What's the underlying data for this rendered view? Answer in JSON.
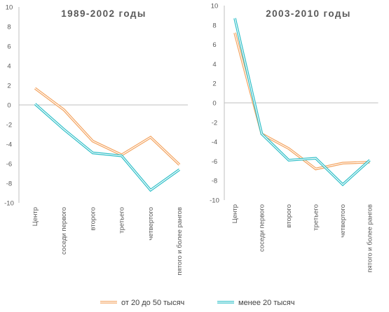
{
  "chart_data": [
    {
      "type": "line",
      "title": "1989-2002 годы",
      "categories": [
        "Центр",
        "соседи первого",
        "второго",
        "третьего",
        "четвертого",
        "пятого и более рангов"
      ],
      "ylim": [
        -10,
        10
      ],
      "yticks": [
        10,
        8,
        6,
        4,
        2,
        0,
        -2,
        -4,
        -6,
        -8,
        -10
      ],
      "grid": false,
      "series": [
        {
          "name": "от 20 до 50 тысяч",
          "color": "#f4a460",
          "values": [
            1.7,
            -0.5,
            -3.7,
            -5.1,
            -3.3,
            -6.1
          ]
        },
        {
          "name": "менее 20 тысяч",
          "color": "#2ebfc8",
          "values": [
            0.1,
            -2.5,
            -4.9,
            -5.2,
            -8.7,
            -6.6
          ]
        }
      ]
    },
    {
      "type": "line",
      "title": "2003-2010 годы",
      "categories": [
        "Центр",
        "соседи первого",
        "второго",
        "третьего",
        "четвертого",
        "пятого и более рангов"
      ],
      "ylim": [
        -10,
        10
      ],
      "yticks": [
        10,
        8,
        6,
        4,
        2,
        0,
        -2,
        -4,
        -6,
        -8,
        -10
      ],
      "grid": false,
      "series": [
        {
          "name": "от 20 до 50 тысяч",
          "color": "#f4a460",
          "values": [
            7.2,
            -3.2,
            -4.7,
            -6.8,
            -6.2,
            -6.1
          ]
        },
        {
          "name": "менее 20 тысяч",
          "color": "#2ebfc8",
          "values": [
            8.7,
            -3.2,
            -5.9,
            -5.7,
            -8.4,
            -5.9
          ]
        }
      ]
    }
  ],
  "legend": {
    "position": "bottom",
    "items": [
      {
        "label": "от 20 до 50 тысяч",
        "color": "#f4a460"
      },
      {
        "label": "менее 20 тысяч",
        "color": "#2ebfc8"
      }
    ]
  }
}
